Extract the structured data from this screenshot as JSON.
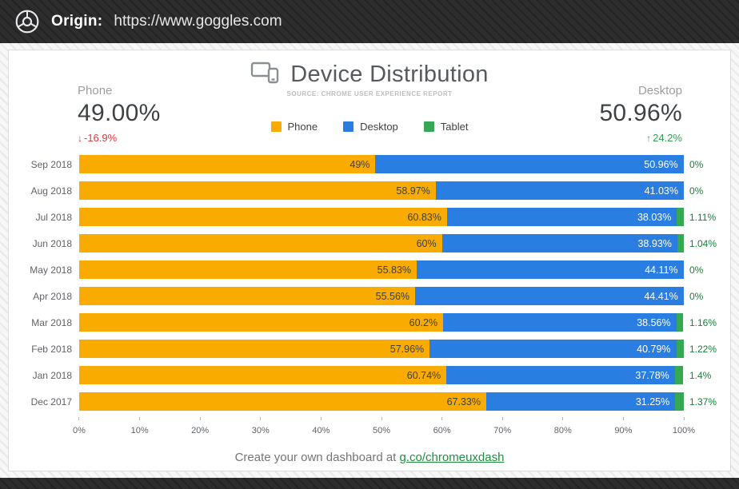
{
  "header": {
    "origin_label": "Origin:",
    "origin_url": "https://www.goggles.com"
  },
  "card": {
    "title": "Device Distribution",
    "subtitle": "SOURCE: CHROME USER EXPERIENCE REPORT",
    "left_stat": {
      "label": "Phone",
      "value": "49.00%",
      "arrow": "↓",
      "delta": "-16.9%",
      "direction": "down",
      "color": "#e5393c"
    },
    "right_stat": {
      "label": "Desktop",
      "value": "50.96%",
      "arrow": "↑",
      "delta": "24.2%",
      "direction": "up",
      "color": "#2f9e4f"
    },
    "legend": [
      {
        "label": "Phone",
        "color": "#F9AB00"
      },
      {
        "label": "Desktop",
        "color": "#2A7DE1"
      },
      {
        "label": "Tablet",
        "color": "#34A853"
      }
    ],
    "footer": {
      "text": "Create your own dashboard at ",
      "link": "g.co/chromeuxdash"
    }
  },
  "chart_data": {
    "type": "bar",
    "stacked": true,
    "orientation": "horizontal",
    "title": "Device Distribution",
    "xlabel": "",
    "ylabel": "",
    "xlim": [
      0,
      100
    ],
    "grid": false,
    "legend_position": "top-center",
    "categories": [
      "Sep 2018",
      "Aug 2018",
      "Jul 2018",
      "Jun 2018",
      "May 2018",
      "Apr 2018",
      "Mar 2018",
      "Feb 2018",
      "Jan 2018",
      "Dec 2017"
    ],
    "series": [
      {
        "name": "Phone",
        "color": "#F9AB00",
        "values": [
          49,
          58.97,
          60.83,
          60,
          55.83,
          55.56,
          60.2,
          57.96,
          60.74,
          67.33
        ],
        "labels": [
          "49%",
          "58.97%",
          "60.83%",
          "60%",
          "55.83%",
          "55.56%",
          "60.2%",
          "57.96%",
          "60.74%",
          "67.33%"
        ]
      },
      {
        "name": "Desktop",
        "color": "#2A7DE1",
        "values": [
          50.96,
          41.03,
          38.03,
          38.93,
          44.11,
          44.41,
          38.56,
          40.79,
          37.78,
          31.25
        ],
        "labels": [
          "50.96%",
          "41.03%",
          "38.03%",
          "38.93%",
          "44.11%",
          "44.41%",
          "38.56%",
          "40.79%",
          "37.78%",
          "31.25%"
        ]
      },
      {
        "name": "Tablet",
        "color": "#34A853",
        "values": [
          0,
          0,
          1.11,
          1.04,
          0,
          0,
          1.16,
          1.22,
          1.4,
          1.37
        ],
        "labels": [
          "0%",
          "0%",
          "1.11%",
          "1.04%",
          "0%",
          "0%",
          "1.16%",
          "1.22%",
          "1.4%",
          "1.37%"
        ]
      }
    ],
    "x_ticks": [
      "0%",
      "10%",
      "20%",
      "30%",
      "40%",
      "50%",
      "60%",
      "70%",
      "80%",
      "90%",
      "100%"
    ]
  }
}
